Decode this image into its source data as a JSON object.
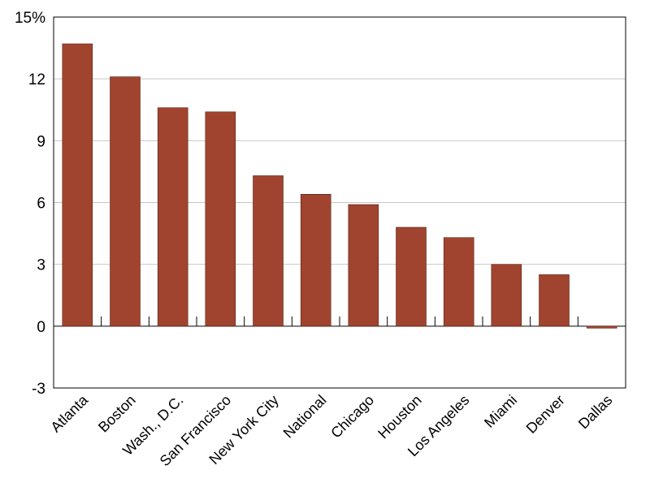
{
  "chart_data": {
    "type": "bar",
    "categories": [
      "Atlanta",
      "Boston",
      "Wash., D.C.",
      "San Francisco",
      "New York City",
      "National",
      "Chicago",
      "Houston",
      "Los Angeles",
      "Miami",
      "Denver",
      "Dallas"
    ],
    "values": [
      13.7,
      12.1,
      10.6,
      10.4,
      7.3,
      6.4,
      5.9,
      4.8,
      4.3,
      3.0,
      2.5,
      -0.1
    ],
    "ylim": [
      -3,
      15
    ],
    "yticks": [
      -3,
      0,
      3,
      6,
      9,
      12,
      15
    ],
    "ytick_labels": [
      "-3",
      "0",
      "3",
      "6",
      "9",
      "12",
      "15%"
    ],
    "grid": true,
    "bar_color": "#a0442f",
    "grid_color": "#c8c8c8",
    "title": "",
    "xlabel": "",
    "ylabel": ""
  }
}
